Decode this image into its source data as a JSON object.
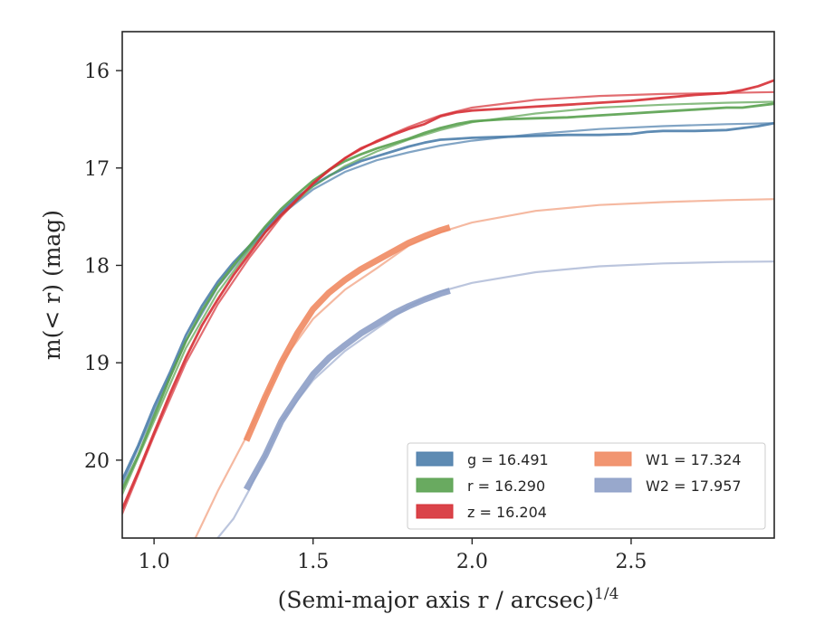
{
  "chart_data": {
    "type": "line",
    "xlabel": "(Semi-major axis r / arcsec)",
    "xlabel_var": "r",
    "xlabel_sup": "1/4",
    "ylabel": "m(< r) (mag)",
    "xlim": [
      0.9,
      2.95
    ],
    "ylim": [
      20.8,
      15.6
    ],
    "y_inverted": true,
    "x_ticks": [
      1.0,
      1.5,
      2.0,
      2.5
    ],
    "x_tick_labels": [
      "1.0",
      "1.5",
      "2.0",
      "2.5"
    ],
    "y_ticks": [
      16,
      17,
      18,
      19,
      20
    ],
    "y_tick_labels": [
      "16",
      "17",
      "18",
      "19",
      "20"
    ],
    "grid": false,
    "legend_position": "lower-right",
    "series": [
      {
        "name": "g = 16.491",
        "band": "g",
        "value": "16.491",
        "color": "#4c7eab",
        "observed": [
          [
            0.9,
            20.2
          ],
          [
            0.95,
            19.85
          ],
          [
            1.0,
            19.45
          ],
          [
            1.05,
            19.1
          ],
          [
            1.1,
            18.72
          ],
          [
            1.15,
            18.42
          ],
          [
            1.2,
            18.17
          ],
          [
            1.25,
            17.97
          ],
          [
            1.3,
            17.8
          ],
          [
            1.35,
            17.62
          ],
          [
            1.4,
            17.45
          ],
          [
            1.45,
            17.3
          ],
          [
            1.5,
            17.18
          ],
          [
            1.55,
            17.08
          ],
          [
            1.6,
            17.0
          ],
          [
            1.65,
            16.93
          ],
          [
            1.7,
            16.88
          ],
          [
            1.75,
            16.83
          ],
          [
            1.8,
            16.78
          ],
          [
            1.85,
            16.74
          ],
          [
            1.9,
            16.71
          ],
          [
            1.95,
            16.7
          ],
          [
            2.0,
            16.69
          ],
          [
            2.1,
            16.68
          ],
          [
            2.2,
            16.67
          ],
          [
            2.3,
            16.66
          ],
          [
            2.4,
            16.66
          ],
          [
            2.5,
            16.65
          ],
          [
            2.55,
            16.63
          ],
          [
            2.6,
            16.62
          ],
          [
            2.7,
            16.62
          ],
          [
            2.8,
            16.61
          ],
          [
            2.85,
            16.59
          ],
          [
            2.9,
            16.57
          ],
          [
            2.95,
            16.54
          ]
        ],
        "model": [
          [
            0.9,
            20.25
          ],
          [
            1.0,
            19.5
          ],
          [
            1.1,
            18.78
          ],
          [
            1.2,
            18.22
          ],
          [
            1.3,
            17.82
          ],
          [
            1.4,
            17.48
          ],
          [
            1.5,
            17.22
          ],
          [
            1.6,
            17.04
          ],
          [
            1.7,
            16.92
          ],
          [
            1.8,
            16.84
          ],
          [
            1.9,
            16.77
          ],
          [
            2.0,
            16.72
          ],
          [
            2.2,
            16.65
          ],
          [
            2.4,
            16.6
          ],
          [
            2.6,
            16.57
          ],
          [
            2.8,
            16.55
          ],
          [
            2.95,
            16.54
          ]
        ]
      },
      {
        "name": "r = 16.290",
        "band": "r",
        "value": "16.290",
        "color": "#59a14f",
        "observed": [
          [
            0.9,
            20.3
          ],
          [
            0.95,
            19.95
          ],
          [
            1.0,
            19.55
          ],
          [
            1.05,
            19.15
          ],
          [
            1.1,
            18.78
          ],
          [
            1.15,
            18.47
          ],
          [
            1.2,
            18.21
          ],
          [
            1.25,
            18.0
          ],
          [
            1.3,
            17.8
          ],
          [
            1.35,
            17.6
          ],
          [
            1.4,
            17.42
          ],
          [
            1.45,
            17.27
          ],
          [
            1.5,
            17.13
          ],
          [
            1.55,
            17.02
          ],
          [
            1.6,
            16.93
          ],
          [
            1.65,
            16.86
          ],
          [
            1.7,
            16.8
          ],
          [
            1.75,
            16.75
          ],
          [
            1.8,
            16.7
          ],
          [
            1.85,
            16.64
          ],
          [
            1.9,
            16.59
          ],
          [
            1.95,
            16.55
          ],
          [
            2.0,
            16.52
          ],
          [
            2.1,
            16.5
          ],
          [
            2.2,
            16.49
          ],
          [
            2.3,
            16.48
          ],
          [
            2.4,
            16.46
          ],
          [
            2.5,
            16.44
          ],
          [
            2.6,
            16.42
          ],
          [
            2.7,
            16.4
          ],
          [
            2.8,
            16.38
          ],
          [
            2.85,
            16.38
          ],
          [
            2.9,
            16.36
          ],
          [
            2.95,
            16.34
          ]
        ],
        "model": [
          [
            0.9,
            20.35
          ],
          [
            1.0,
            19.6
          ],
          [
            1.1,
            18.85
          ],
          [
            1.2,
            18.28
          ],
          [
            1.3,
            17.84
          ],
          [
            1.4,
            17.48
          ],
          [
            1.5,
            17.19
          ],
          [
            1.6,
            16.98
          ],
          [
            1.7,
            16.83
          ],
          [
            1.8,
            16.71
          ],
          [
            1.9,
            16.61
          ],
          [
            2.0,
            16.53
          ],
          [
            2.2,
            16.44
          ],
          [
            2.4,
            16.38
          ],
          [
            2.6,
            16.35
          ],
          [
            2.8,
            16.33
          ],
          [
            2.95,
            16.32
          ]
        ]
      },
      {
        "name": "z = 16.204",
        "band": "z",
        "value": "16.204",
        "color": "#d62f35",
        "observed": [
          [
            0.9,
            20.5
          ],
          [
            0.95,
            20.12
          ],
          [
            1.0,
            19.72
          ],
          [
            1.05,
            19.32
          ],
          [
            1.1,
            18.95
          ],
          [
            1.15,
            18.62
          ],
          [
            1.2,
            18.35
          ],
          [
            1.25,
            18.1
          ],
          [
            1.3,
            17.88
          ],
          [
            1.35,
            17.66
          ],
          [
            1.4,
            17.48
          ],
          [
            1.45,
            17.32
          ],
          [
            1.5,
            17.16
          ],
          [
            1.55,
            17.02
          ],
          [
            1.6,
            16.9
          ],
          [
            1.65,
            16.8
          ],
          [
            1.7,
            16.73
          ],
          [
            1.75,
            16.66
          ],
          [
            1.8,
            16.6
          ],
          [
            1.85,
            16.55
          ],
          [
            1.9,
            16.47
          ],
          [
            1.95,
            16.43
          ],
          [
            2.0,
            16.41
          ],
          [
            2.1,
            16.39
          ],
          [
            2.2,
            16.37
          ],
          [
            2.3,
            16.35
          ],
          [
            2.4,
            16.33
          ],
          [
            2.5,
            16.31
          ],
          [
            2.6,
            16.28
          ],
          [
            2.7,
            16.25
          ],
          [
            2.8,
            16.23
          ],
          [
            2.85,
            16.2
          ],
          [
            2.9,
            16.16
          ],
          [
            2.95,
            16.1
          ]
        ],
        "model": [
          [
            0.9,
            20.55
          ],
          [
            1.0,
            19.75
          ],
          [
            1.1,
            19.0
          ],
          [
            1.2,
            18.4
          ],
          [
            1.3,
            17.92
          ],
          [
            1.4,
            17.5
          ],
          [
            1.5,
            17.16
          ],
          [
            1.6,
            16.9
          ],
          [
            1.7,
            16.72
          ],
          [
            1.8,
            16.58
          ],
          [
            1.9,
            16.46
          ],
          [
            2.0,
            16.38
          ],
          [
            2.2,
            16.3
          ],
          [
            2.4,
            16.26
          ],
          [
            2.6,
            16.24
          ],
          [
            2.8,
            16.23
          ],
          [
            2.95,
            16.22
          ]
        ]
      },
      {
        "name": "W1 = 17.324",
        "band": "W1",
        "value": "17.324",
        "color": "#ef8a62",
        "observed": [
          [
            1.29,
            19.8
          ],
          [
            1.35,
            19.35
          ],
          [
            1.4,
            19.0
          ],
          [
            1.45,
            18.7
          ],
          [
            1.5,
            18.45
          ],
          [
            1.55,
            18.28
          ],
          [
            1.6,
            18.15
          ],
          [
            1.65,
            18.04
          ],
          [
            1.7,
            17.95
          ],
          [
            1.75,
            17.86
          ],
          [
            1.8,
            17.77
          ],
          [
            1.85,
            17.7
          ],
          [
            1.9,
            17.64
          ],
          [
            1.93,
            17.61
          ]
        ],
        "model": [
          [
            1.13,
            20.8
          ],
          [
            1.2,
            20.32
          ],
          [
            1.3,
            19.7
          ],
          [
            1.4,
            19.0
          ],
          [
            1.5,
            18.55
          ],
          [
            1.6,
            18.25
          ],
          [
            1.7,
            18.03
          ],
          [
            1.8,
            17.8
          ],
          [
            1.9,
            17.66
          ],
          [
            2.0,
            17.56
          ],
          [
            2.2,
            17.44
          ],
          [
            2.4,
            17.38
          ],
          [
            2.6,
            17.35
          ],
          [
            2.8,
            17.33
          ],
          [
            2.95,
            17.32
          ]
        ]
      },
      {
        "name": "W2 = 17.957",
        "band": "W2",
        "value": "17.957",
        "color": "#8d9ec7",
        "observed": [
          [
            1.29,
            20.3
          ],
          [
            1.35,
            19.95
          ],
          [
            1.4,
            19.6
          ],
          [
            1.45,
            19.35
          ],
          [
            1.5,
            19.12
          ],
          [
            1.55,
            18.95
          ],
          [
            1.6,
            18.82
          ],
          [
            1.65,
            18.7
          ],
          [
            1.7,
            18.6
          ],
          [
            1.75,
            18.5
          ],
          [
            1.8,
            18.42
          ],
          [
            1.85,
            18.35
          ],
          [
            1.9,
            18.29
          ],
          [
            1.93,
            18.26
          ]
        ],
        "model": [
          [
            1.2,
            20.8
          ],
          [
            1.25,
            20.6
          ],
          [
            1.3,
            20.3
          ],
          [
            1.4,
            19.6
          ],
          [
            1.5,
            19.18
          ],
          [
            1.6,
            18.88
          ],
          [
            1.7,
            18.65
          ],
          [
            1.8,
            18.42
          ],
          [
            1.9,
            18.27
          ],
          [
            2.0,
            18.18
          ],
          [
            2.2,
            18.07
          ],
          [
            2.4,
            18.01
          ],
          [
            2.6,
            17.98
          ],
          [
            2.8,
            17.965
          ],
          [
            2.95,
            17.96
          ]
        ]
      }
    ]
  }
}
